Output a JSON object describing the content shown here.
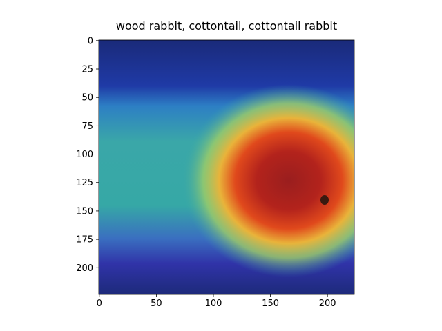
{
  "chart_data": {
    "type": "heatmap",
    "title": "wood rabbit, cottontail, cottontail rabbit",
    "xlim": [
      -0.5,
      223.5
    ],
    "ylim": [
      223.5,
      -0.5
    ],
    "xticks": [
      0,
      50,
      100,
      150,
      200
    ],
    "yticks": [
      0,
      25,
      50,
      75,
      100,
      125,
      150,
      175,
      200
    ]
  }
}
